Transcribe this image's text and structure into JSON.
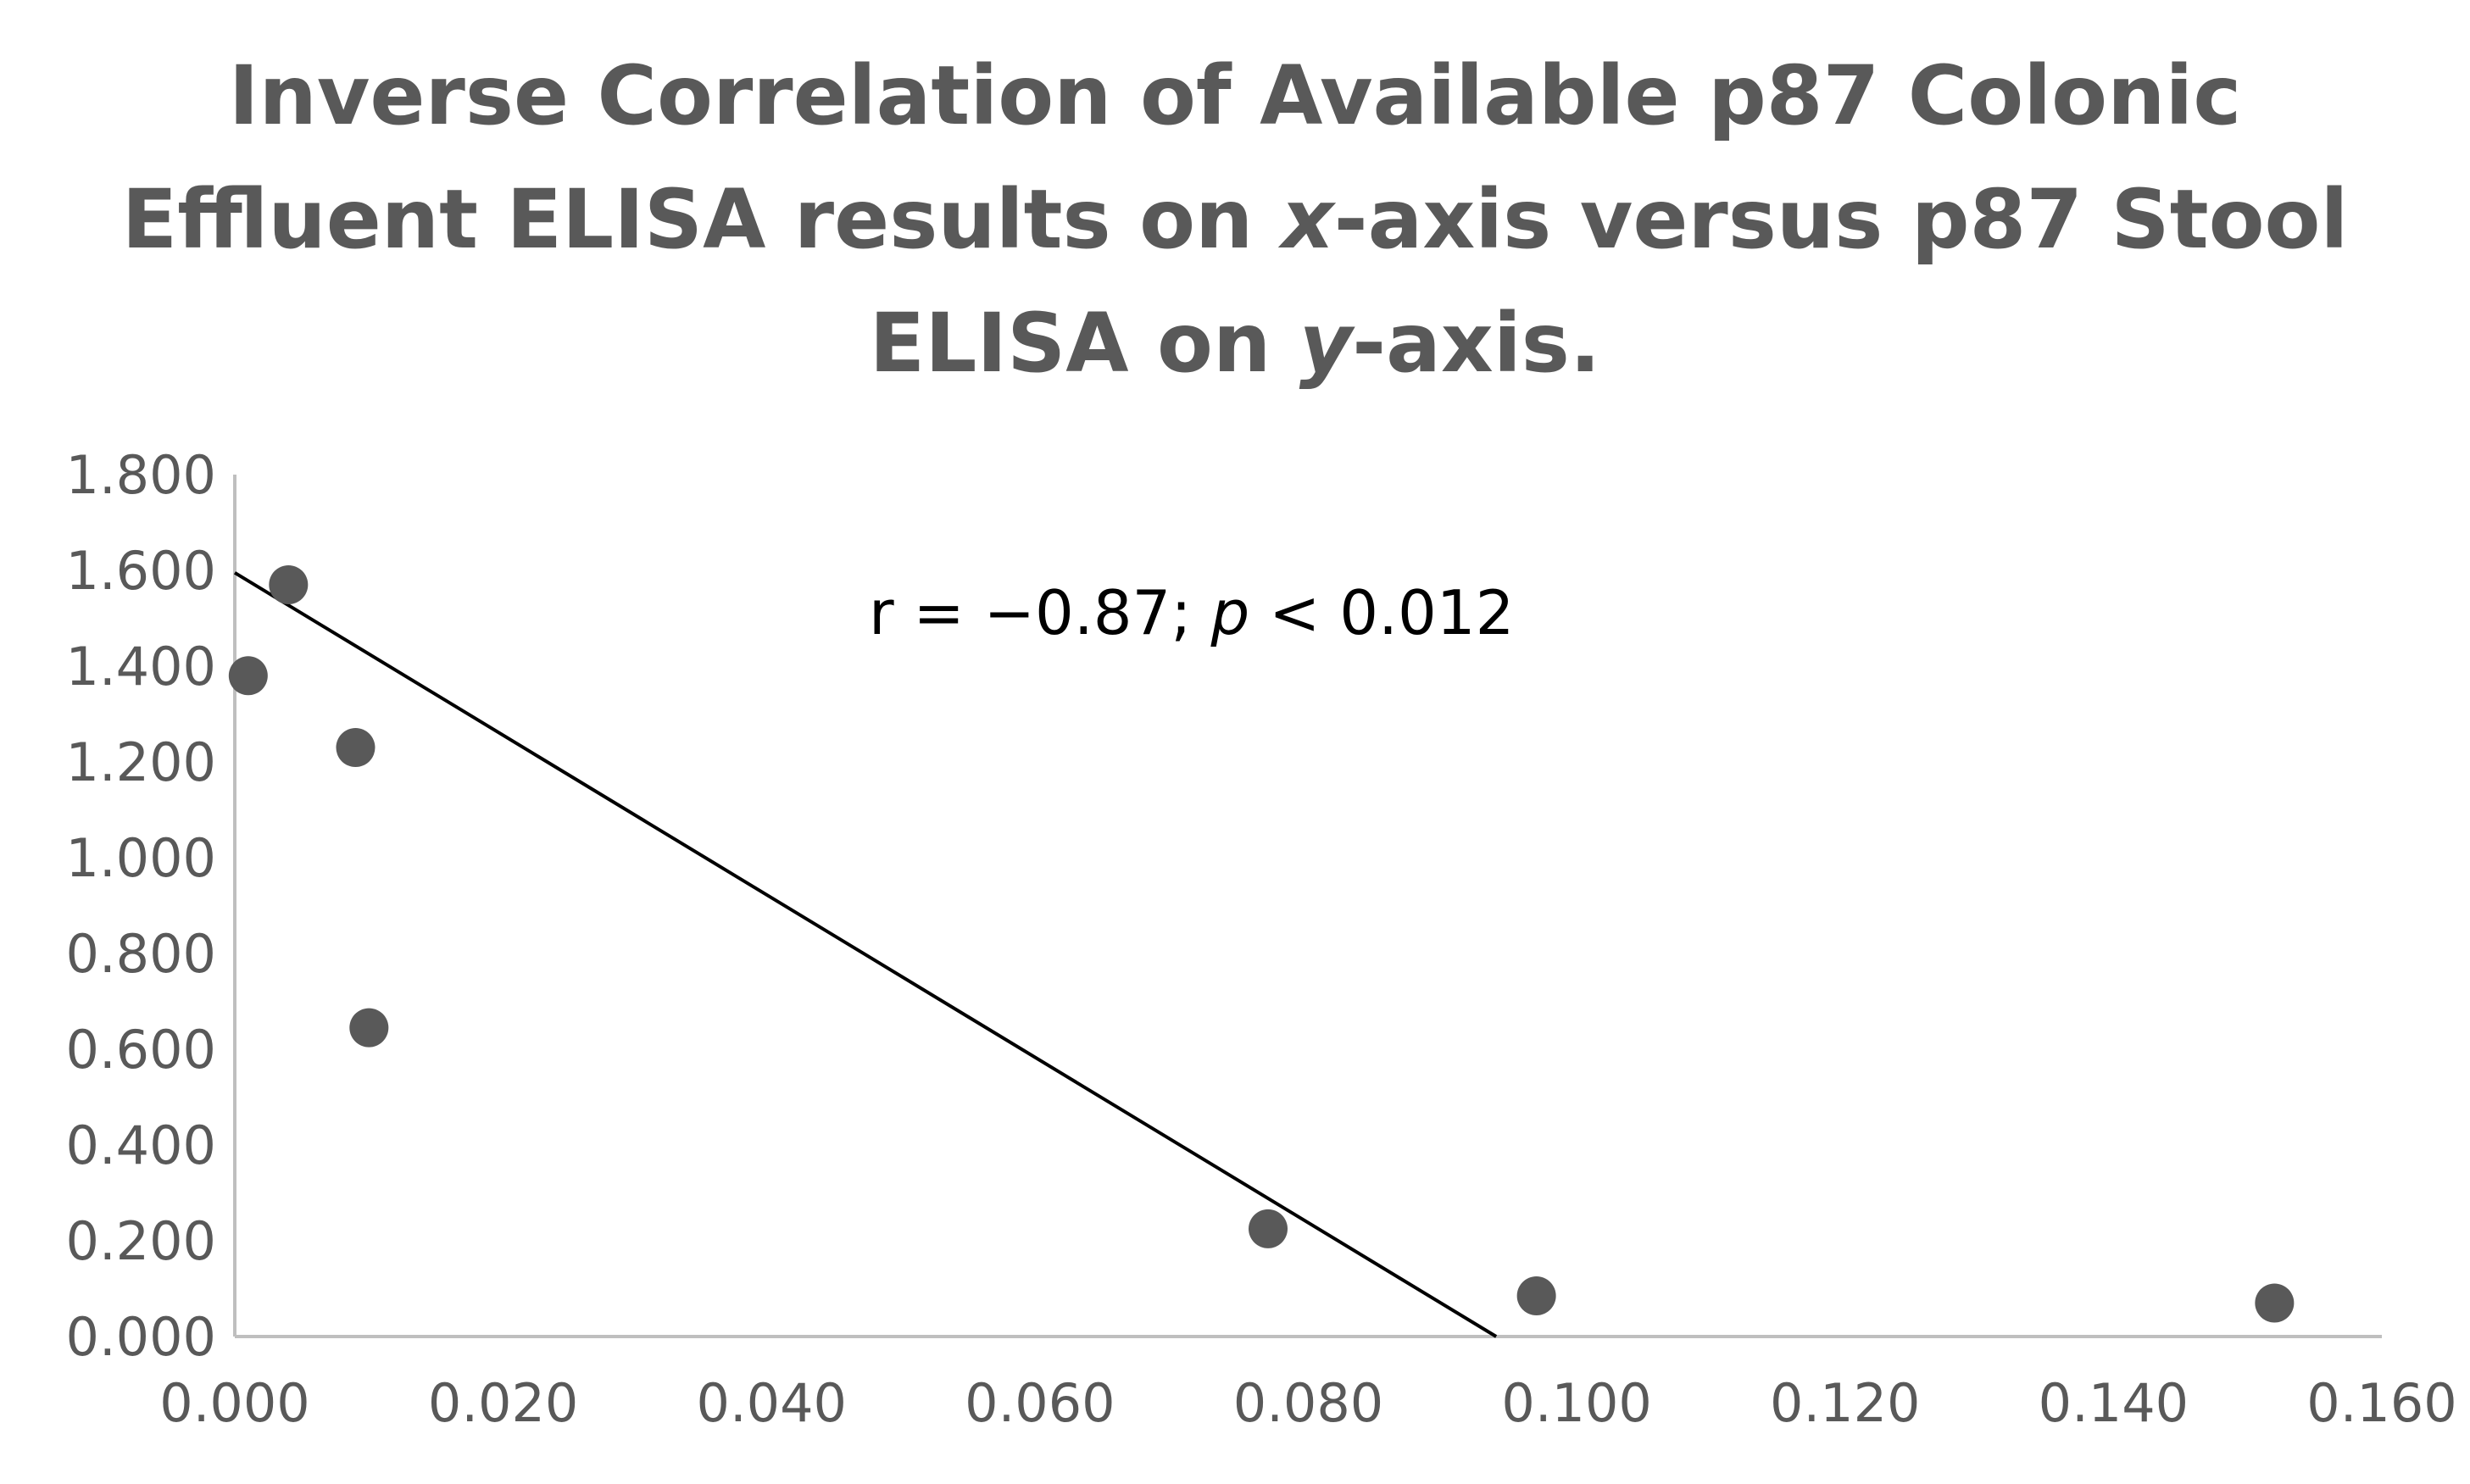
{
  "chart_data": {
    "type": "scatter",
    "title_parts": [
      {
        "text": "Inverse Correlation of Available p87 Colonic",
        "italic": false,
        "break": true
      },
      {
        "text": "Effluent ELISA results on ",
        "italic": false
      },
      {
        "text": "x",
        "italic": true
      },
      {
        "text": "-axis versus p87 Stool",
        "italic": false,
        "break": true
      },
      {
        "text": "ELISA on ",
        "italic": false
      },
      {
        "text": "y",
        "italic": true
      },
      {
        "text": "-axis.",
        "italic": false
      }
    ],
    "xlim": [
      0,
      0.16
    ],
    "ylim": [
      0,
      1.8
    ],
    "x_ticks": [
      "0.000",
      "0.020",
      "0.040",
      "0.060",
      "0.080",
      "0.100",
      "0.120",
      "0.140",
      "0.160"
    ],
    "x_tick_values": [
      0,
      0.02,
      0.04,
      0.06,
      0.08,
      0.1,
      0.12,
      0.14,
      0.16
    ],
    "y_ticks": [
      "0.000",
      "0.200",
      "0.400",
      "0.600",
      "0.800",
      "1.000",
      "1.200",
      "1.400",
      "1.600",
      "1.800"
    ],
    "y_tick_values": [
      0,
      0.2,
      0.4,
      0.6,
      0.8,
      1.0,
      1.2,
      1.4,
      1.6,
      1.8
    ],
    "points": [
      {
        "x": 0.001,
        "y": 1.38
      },
      {
        "x": 0.004,
        "y": 1.57
      },
      {
        "x": 0.009,
        "y": 1.23
      },
      {
        "x": 0.01,
        "y": 0.645
      },
      {
        "x": 0.077,
        "y": 0.225
      },
      {
        "x": 0.097,
        "y": 0.085
      },
      {
        "x": 0.152,
        "y": 0.07
      }
    ],
    "trendline": {
      "x": [
        0,
        0.094
      ],
      "y": [
        1.595,
        0
      ]
    },
    "annotation_parts": [
      {
        "text": "r = −0.87; ",
        "italic": false
      },
      {
        "text": "p",
        "italic": true
      },
      {
        "text": " < 0.012",
        "italic": false
      }
    ],
    "grid": false,
    "legend": "none"
  },
  "colors": {
    "marker": "#595959",
    "axis": "#bfbfbf",
    "trendline": "#000000",
    "text": "#595959"
  }
}
